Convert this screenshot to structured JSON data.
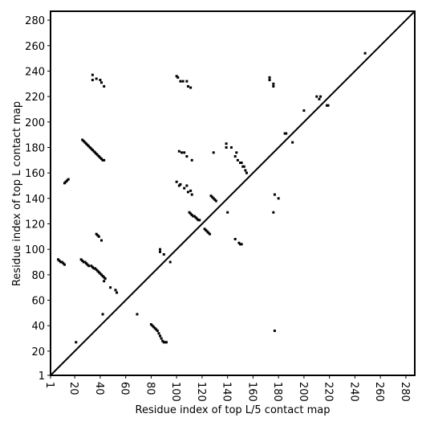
{
  "chart_data": {
    "type": "scatter",
    "xlabel": "Residue index of top L/5 contact map",
    "ylabel": "Residue index of top L contact map",
    "xlim": [
      1,
      287
    ],
    "ylim": [
      1,
      287
    ],
    "xticks": [
      1,
      20,
      40,
      60,
      80,
      100,
      120,
      140,
      160,
      180,
      200,
      220,
      240,
      260,
      280
    ],
    "yticks": [
      1,
      20,
      40,
      60,
      80,
      100,
      120,
      140,
      160,
      180,
      200,
      220,
      240,
      260,
      280
    ],
    "diagonal": true,
    "diagonal_color": "#000000",
    "series": [
      {
        "color": "#000000",
        "x": [
          7,
          8,
          9,
          10,
          11,
          12,
          12,
          13,
          14,
          15,
          25,
          26,
          27,
          28,
          29,
          30,
          31,
          33,
          34,
          35,
          36,
          37,
          38,
          39,
          40,
          41,
          42,
          43,
          44,
          43,
          48,
          52,
          53,
          26,
          27,
          28,
          29,
          30,
          31,
          32,
          33,
          34,
          35,
          36,
          37,
          38,
          39,
          40,
          41,
          42,
          43,
          37,
          38,
          39,
          41,
          34,
          34,
          37,
          40,
          41,
          43,
          42,
          69,
          21,
          80,
          81,
          82,
          83,
          84,
          85,
          86,
          87,
          88,
          89,
          90,
          91,
          92,
          87,
          87,
          90,
          95,
          100,
          101,
          103,
          105,
          108,
          109,
          111,
          100,
          102,
          103,
          106,
          108,
          109,
          111,
          112,
          102,
          104,
          106,
          108,
          112,
          110,
          111,
          112,
          113,
          114,
          115,
          116,
          117,
          118,
          122,
          123,
          124,
          125,
          126,
          127,
          128,
          129,
          130,
          131,
          129,
          139,
          139,
          143,
          147,
          146,
          148,
          150,
          151,
          152,
          153,
          154,
          155,
          140,
          146,
          149,
          150,
          151,
          173,
          173,
          176,
          176,
          177,
          180,
          176,
          177,
          185,
          186,
          191,
          200,
          210,
          213,
          212,
          218,
          219,
          248
        ],
        "values": [
          92,
          91,
          90,
          90,
          89,
          88,
          152,
          153,
          154,
          155,
          92,
          91,
          90,
          90,
          89,
          88,
          87,
          87,
          86,
          85,
          85,
          84,
          83,
          82,
          81,
          80,
          79,
          78,
          77,
          75,
          70,
          68,
          66,
          186,
          185,
          184,
          183,
          182,
          181,
          180,
          179,
          178,
          177,
          176,
          175,
          174,
          173,
          172,
          171,
          170,
          170,
          112,
          111,
          110,
          107,
          237,
          233,
          234,
          233,
          231,
          228,
          49,
          49,
          27,
          41,
          40,
          39,
          38,
          37,
          36,
          34,
          32,
          30,
          28,
          27,
          27,
          27,
          100,
          98,
          96,
          90,
          236,
          235,
          232,
          232,
          232,
          228,
          227,
          153,
          150,
          151,
          148,
          150,
          145,
          146,
          143,
          177,
          176,
          176,
          173,
          170,
          129,
          128,
          127,
          126,
          126,
          125,
          124,
          123,
          123,
          116,
          115,
          114,
          113,
          112,
          142,
          141,
          140,
          139,
          138,
          176,
          183,
          180,
          180,
          176,
          173,
          170,
          168,
          168,
          165,
          165,
          162,
          160,
          129,
          108,
          105,
          104,
          104,
          235,
          233,
          230,
          228,
          143,
          140,
          129,
          36,
          191,
          191,
          184,
          209,
          220,
          220,
          218,
          213,
          213,
          254
        ]
      }
    ]
  }
}
